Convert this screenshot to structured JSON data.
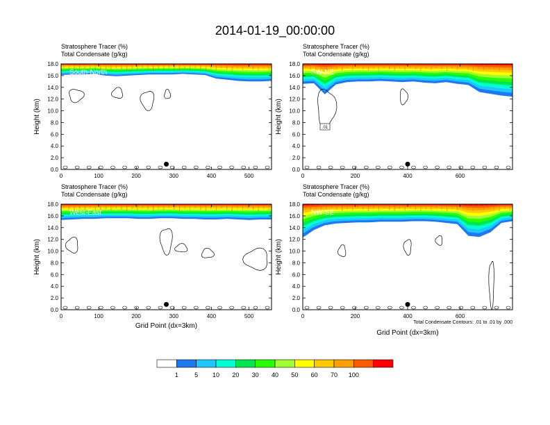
{
  "page_title": "2014-01-19_00:00:00",
  "chart_data": [
    {
      "type": "heatmap",
      "panel_label": "South-North",
      "title_line1": "Stratosphere Tracer   (%)",
      "title_line2": "Total Condensate   (g/kg)",
      "ylabel": "Height (km)",
      "xlabel": "",
      "xlim": [
        0,
        560
      ],
      "ylim": [
        0,
        18
      ],
      "xticks": [
        0,
        100,
        200,
        300,
        400,
        500
      ],
      "yticks": [
        "0.0",
        "2.0",
        "4.0",
        "6.0",
        "8.0",
        "10.0",
        "12.0",
        "14.0",
        "16.0",
        "18.0"
      ],
      "tracer_base_km": [
        16.1,
        16.2,
        16.2,
        16.3,
        16.0,
        15.9,
        16.0,
        16.1,
        16.2,
        16.2,
        16.2,
        16.3,
        16.2,
        16.1,
        15.5,
        15.3,
        15.1,
        15.0,
        15.0,
        15.1
      ],
      "marker_x": 280
    },
    {
      "type": "heatmap",
      "panel_label": "SW-NE",
      "title_line1": "Stratosphere Tracer   (%)",
      "title_line2": "Total Condensate   (g/kg)",
      "ylabel": "Height (km)",
      "xlabel": "",
      "xlim": [
        0,
        800
      ],
      "ylim": [
        0,
        18
      ],
      "xticks": [
        0,
        200,
        400,
        600
      ],
      "yticks": [
        "0.0",
        "2.0",
        "4.0",
        "6.0",
        "8.0",
        "10.0",
        "12.0",
        "14.0",
        "16.0",
        "18.0"
      ],
      "tracer_base_km": [
        14.6,
        14.7,
        12.8,
        14.5,
        14.9,
        15.0,
        15.0,
        15.1,
        15.0,
        14.9,
        15.0,
        14.8,
        14.7,
        14.9,
        14.6,
        14.4,
        13.2,
        12.9,
        12.6,
        12.4
      ],
      "marker_x": 400,
      "contour_label": ".01"
    },
    {
      "type": "heatmap",
      "panel_label": "West-East",
      "title_line1": "Stratosphere Tracer   (%)",
      "title_line2": "Total Condensate   (g/kg)",
      "ylabel": "Height (km)",
      "xlabel": "Grid Point (dx=3km)",
      "xlim": [
        0,
        560
      ],
      "ylim": [
        0,
        18
      ],
      "xticks": [
        0,
        100,
        200,
        300,
        400,
        500
      ],
      "yticks": [
        "0.0",
        "2.0",
        "4.0",
        "6.0",
        "8.0",
        "10.0",
        "12.0",
        "14.0",
        "16.0",
        "18.0"
      ],
      "tracer_base_km": [
        15.3,
        15.4,
        15.5,
        15.5,
        15.6,
        15.6,
        15.6,
        15.5,
        15.5,
        15.6,
        15.6,
        15.5,
        15.5,
        15.4,
        15.4,
        15.5,
        15.4,
        15.3,
        15.4,
        15.4
      ],
      "marker_x": 280
    },
    {
      "type": "heatmap",
      "panel_label": "NW-SE",
      "title_line1": "Stratosphere Tracer   (%)",
      "title_line2": "Total Condensate   (g/kg)",
      "ylabel": "Height (km)",
      "xlabel": "Grid Point (dx=3km)",
      "xlim": [
        0,
        800
      ],
      "ylim": [
        0,
        18
      ],
      "xticks": [
        0,
        200,
        400,
        600
      ],
      "yticks": [
        "0.0",
        "2.0",
        "4.0",
        "6.0",
        "8.0",
        "10.0",
        "12.0",
        "14.0",
        "16.0",
        "18.0"
      ],
      "tracer_base_km": [
        12.3,
        13.6,
        14.4,
        14.7,
        14.8,
        14.9,
        14.9,
        15.0,
        15.0,
        15.0,
        15.1,
        15.1,
        15.0,
        14.8,
        14.6,
        12.6,
        12.4,
        13.2,
        14.8,
        15.1
      ],
      "marker_x": 400,
      "footnote": "Total Condensate Contours: .01 to .01 by .000"
    }
  ],
  "colorbar": {
    "labels": [
      "1",
      "5",
      "10",
      "20",
      "30",
      "40",
      "50",
      "60",
      "70",
      "100"
    ],
    "colors": [
      "#ffffff",
      "#1e78f0",
      "#1ec8ff",
      "#00ffd2",
      "#00e650",
      "#28ff00",
      "#a0ff32",
      "#ffff00",
      "#ffc800",
      "#ffa000",
      "#ff5a00",
      "#ff0000"
    ]
  }
}
